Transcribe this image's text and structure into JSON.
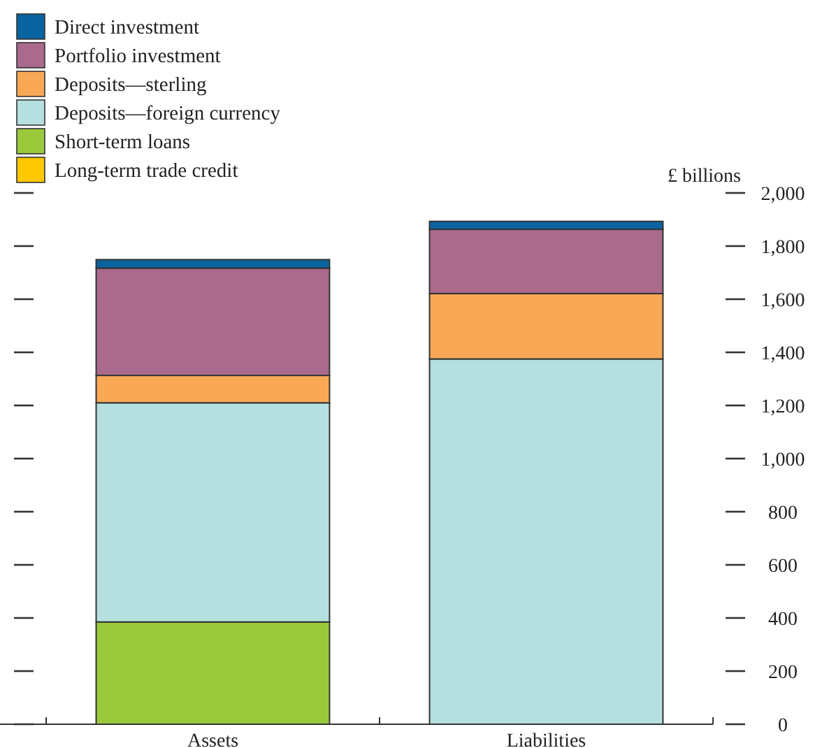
{
  "chart_data": {
    "type": "bar",
    "stacked": true,
    "ylabel": "£ billions",
    "categories": [
      "Assets",
      "Liabilities"
    ],
    "series": [
      {
        "name": "Long-term trade credit",
        "color": "#ffc800",
        "values": [
          0,
          0
        ]
      },
      {
        "name": "Short-term loans",
        "color": "#9aca3c",
        "values": [
          385,
          0
        ]
      },
      {
        "name": "Deposits—foreign currency",
        "color": "#b5e0df",
        "values": [
          825,
          1375
        ]
      },
      {
        "name": "Deposits—sterling",
        "color": "#f9a956",
        "values": [
          103,
          246
        ]
      },
      {
        "name": "Portfolio investment",
        "color": "#aa6a8c",
        "values": [
          404,
          242
        ]
      },
      {
        "name": "Direct investment",
        "color": "#0a64a0",
        "values": [
          32,
          30
        ]
      }
    ],
    "ylim": [
      0,
      2000
    ],
    "yticks": [
      0,
      200,
      400,
      600,
      800,
      {
        "value": 1000,
        "label": "1,000"
      },
      {
        "value": 1200,
        "label": "1,200"
      },
      {
        "value": 1400,
        "label": "1,400"
      },
      {
        "value": 1600,
        "label": "1,600"
      },
      {
        "value": 1800,
        "label": "1,800"
      },
      {
        "value": 2000,
        "label": "2,000"
      }
    ],
    "legend": "top left",
    "grid": false
  }
}
